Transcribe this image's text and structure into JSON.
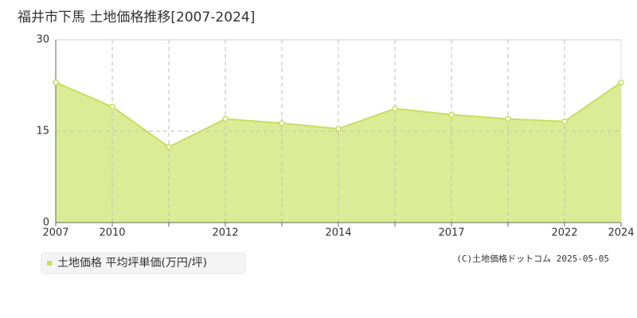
{
  "chart_data": {
    "type": "area",
    "title": "福井市下馬 土地価格推移[2007-2024]",
    "categories": [
      "2007",
      "2010",
      null,
      "2012",
      null,
      "2014",
      null,
      "2017",
      null,
      "2022",
      "2024"
    ],
    "series": [
      {
        "name": "土地価格 平均坪単価(万円/坪)",
        "color": "#c5df5f",
        "fill": "#dcec96",
        "values": [
          23,
          19,
          12.4,
          17,
          16.3,
          15.4,
          18.7,
          17.7,
          17,
          16.6,
          23
        ]
      }
    ],
    "ylim": [
      0,
      30
    ],
    "yticks": [
      0,
      15,
      30
    ],
    "grid": true,
    "legend": "bottom-left",
    "annotation": "(C)土地価格ドットコム 2025-05-05"
  }
}
